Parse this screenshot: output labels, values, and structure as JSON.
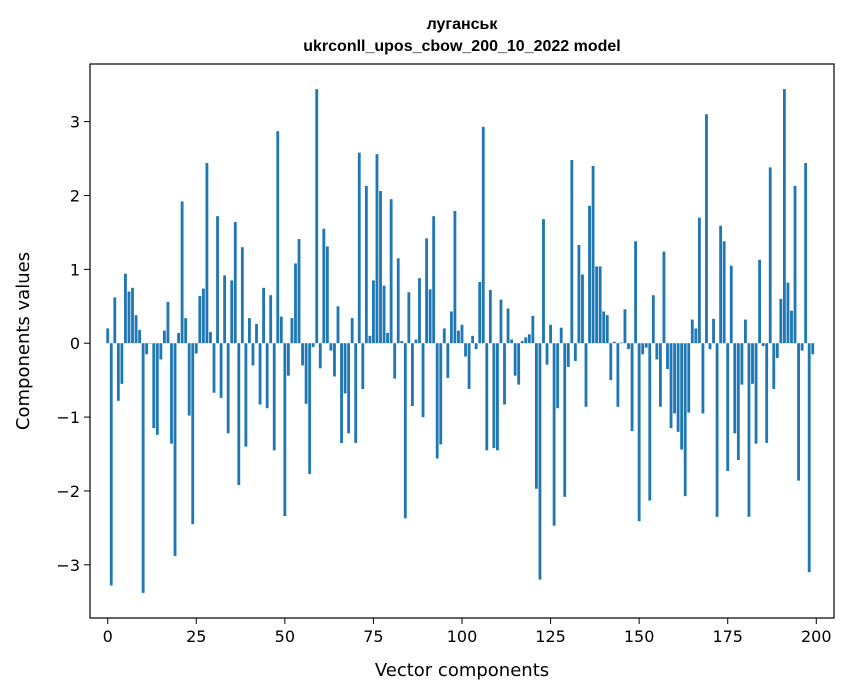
{
  "chart_data": {
    "type": "bar",
    "title": "луганськ",
    "subtitle": "ukrconll_upos_cbow_200_10_2022 model",
    "xlabel": "Vector components",
    "ylabel": "Components values",
    "xlim": [
      -5,
      205
    ],
    "ylim": [
      -3.72,
      3.78
    ],
    "x_ticks": [
      0,
      25,
      50,
      75,
      100,
      125,
      150,
      175,
      200
    ],
    "x_tick_labels": [
      "0",
      "25",
      "50",
      "75",
      "100",
      "125",
      "150",
      "175",
      "200"
    ],
    "y_ticks": [
      -3,
      -2,
      -1,
      0,
      1,
      2,
      3
    ],
    "y_tick_labels": [
      "−3",
      "−2",
      "−1",
      "0",
      "1",
      "2",
      "3"
    ],
    "grid": false,
    "bar_color": "#1f77b4",
    "values": [
      0.2,
      -3.28,
      0.62,
      -0.78,
      -0.55,
      0.94,
      0.7,
      0.75,
      0.38,
      0.18,
      -3.38,
      -0.15,
      0.0,
      -1.15,
      -1.24,
      -0.22,
      0.17,
      0.56,
      -1.36,
      -2.88,
      0.14,
      1.92,
      0.34,
      -0.98,
      -2.45,
      -0.14,
      0.64,
      0.74,
      2.44,
      0.15,
      -0.67,
      1.72,
      -0.74,
      0.92,
      -1.22,
      0.85,
      1.64,
      -1.92,
      1.3,
      -1.4,
      0.34,
      -0.3,
      0.26,
      -0.83,
      0.75,
      -0.88,
      0.65,
      -1.45,
      2.87,
      0.36,
      -2.34,
      -0.44,
      0.34,
      1.08,
      1.41,
      -0.3,
      -0.82,
      -1.77,
      -0.05,
      3.44,
      -0.34,
      1.55,
      1.31,
      -0.1,
      -0.45,
      0.5,
      -1.35,
      -0.68,
      -1.22,
      0.34,
      -1.35,
      2.58,
      -0.62,
      2.13,
      0.1,
      0.85,
      2.56,
      2.06,
      0.78,
      0.14,
      1.95,
      -0.48,
      1.15,
      0.03,
      -2.37,
      0.69,
      -0.85,
      0.05,
      0.88,
      -1.0,
      1.42,
      0.73,
      1.72,
      -1.56,
      -1.37,
      0.2,
      -0.47,
      0.43,
      1.79,
      0.17,
      0.25,
      -0.18,
      -0.62,
      0.1,
      -0.08,
      0.83,
      2.93,
      -1.45,
      0.72,
      -1.42,
      -1.45,
      0.59,
      -0.83,
      0.47,
      0.05,
      -0.44,
      -0.56,
      0.03,
      0.08,
      0.12,
      0.37,
      -1.97,
      -3.2,
      1.68,
      -0.29,
      0.25,
      -2.47,
      -0.88,
      0.21,
      -2.08,
      -0.32,
      2.48,
      -0.24,
      1.33,
      0.93,
      -0.86,
      1.86,
      2.4,
      1.04,
      1.04,
      0.43,
      0.38,
      -0.5,
      0.02,
      -0.86,
      0.01,
      0.46,
      -0.08,
      -1.19,
      1.38,
      -2.41,
      -0.15,
      -0.06,
      -2.13,
      0.65,
      -0.22,
      -0.86,
      1.24,
      -0.35,
      -1.15,
      -0.95,
      -1.2,
      -1.44,
      -2.07,
      -0.94,
      0.32,
      0.2,
      1.7,
      -0.95,
      3.1,
      -0.08,
      0.33,
      -2.35,
      1.59,
      1.38,
      -1.73,
      1.05,
      -1.22,
      -1.58,
      -0.56,
      0.32,
      -2.35,
      -0.55,
      -1.36,
      1.13,
      -0.04,
      -1.35,
      2.38,
      -0.62,
      -0.2,
      0.6,
      3.44,
      0.82,
      0.44,
      2.13,
      -1.86,
      -0.1,
      2.44,
      -3.1,
      -0.15
    ]
  }
}
